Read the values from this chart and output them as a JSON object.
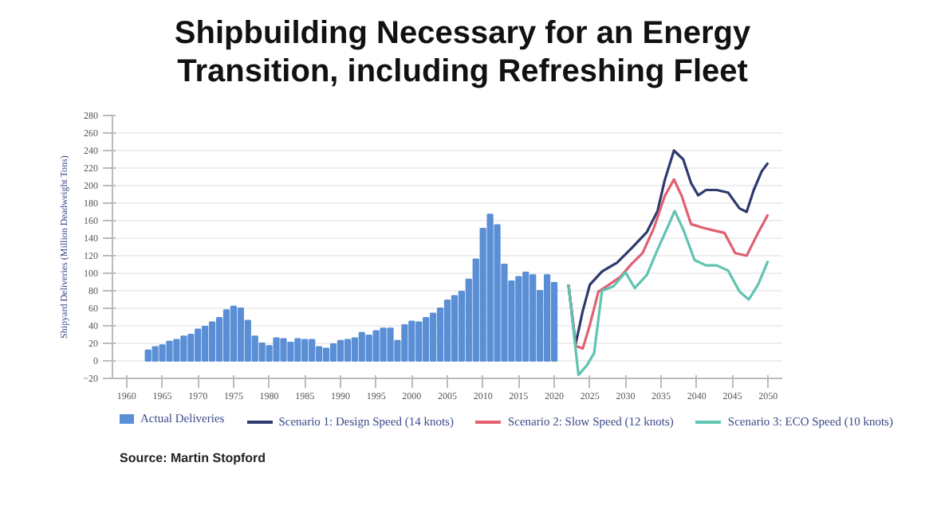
{
  "chart_data": {
    "type": "bar",
    "title": "Shipbuilding Necessary for an Energy Transition, including Refreshing Fleet",
    "ylabel": "Shipyard Deliveries (Million Deadweight Tons)",
    "annotations": [
      "Source: Martin Stopford"
    ],
    "xlim": [
      1958,
      2052
    ],
    "xticks": [
      1960,
      1965,
      1970,
      1975,
      1980,
      1985,
      1990,
      1995,
      2000,
      2005,
      2010,
      2015,
      2020,
      2025,
      2030,
      2035,
      2040,
      2045,
      2050
    ],
    "ylim": [
      -20,
      280
    ],
    "yticks": [
      -20,
      0,
      20,
      40,
      60,
      80,
      100,
      120,
      140,
      160,
      180,
      200,
      220,
      240,
      260,
      280
    ],
    "grid": "y",
    "legend": "bottom",
    "series": [
      {
        "name": "Actual Deliveries",
        "color": "#5a8fd6",
        "x": [
          1963,
          1964,
          1965,
          1966,
          1967,
          1968,
          1969,
          1970,
          1971,
          1972,
          1973,
          1974,
          1975,
          1976,
          1977,
          1978,
          1979,
          1980,
          1981,
          1982,
          1983,
          1984,
          1985,
          1986,
          1987,
          1988,
          1989,
          1990,
          1991,
          1992,
          1993,
          1994,
          1995,
          1996,
          1997,
          1998,
          1999,
          2000,
          2001,
          2002,
          2003,
          2004,
          2005,
          2006,
          2007,
          2008,
          2009,
          2010,
          2011,
          2012,
          2013,
          2014,
          2015,
          2016,
          2017,
          2018,
          2019,
          2020
        ],
        "values": [
          12,
          16,
          18,
          22,
          24,
          28,
          30,
          36,
          39,
          44,
          49,
          58,
          62,
          60,
          46,
          28,
          20,
          17,
          26,
          25,
          21,
          25,
          24,
          24,
          16,
          14,
          19,
          23,
          24,
          26,
          32,
          29,
          34,
          37,
          37,
          23,
          41,
          45,
          44,
          49,
          54,
          60,
          69,
          74,
          79,
          93,
          116,
          151,
          167,
          155,
          110,
          91,
          96,
          101,
          98,
          80,
          98,
          89
        ]
      },
      {
        "name": "Scenario 1: Design Speed (14 knots)",
        "type": "line",
        "color": "#2e3a6e",
        "x": [
          2022,
          2023,
          2024,
          2025,
          2026.7,
          2028.8,
          2030.9,
          2033,
          2034.5,
          2035.5,
          2036.8,
          2038.1,
          2039.2,
          2040.2,
          2041.3,
          2042.8,
          2044.4,
          2046,
          2047,
          2048,
          2049.1,
          2050
        ],
        "values": [
          87,
          19,
          57,
          87,
          102,
          112,
          129,
          147,
          171,
          206,
          240,
          230,
          203,
          189,
          195,
          195,
          192,
          174,
          170,
          195,
          216,
          226
        ]
      },
      {
        "name": "Scenario 2: Slow Speed (12 knots)",
        "type": "line",
        "color": "#e06070",
        "x": [
          2022,
          2023,
          2024,
          2025,
          2026.2,
          2027.7,
          2029.3,
          2030.9,
          2032.4,
          2034,
          2035.5,
          2036.8,
          2037.9,
          2039.2,
          2040.8,
          2042.3,
          2043.9,
          2045.4,
          2047,
          2048.6,
          2050
        ],
        "values": [
          87,
          17,
          14,
          41,
          79,
          87,
          96,
          111,
          123,
          152,
          188,
          207,
          188,
          156,
          152,
          149,
          146,
          123,
          120,
          146,
          167
        ]
      },
      {
        "name": "Scenario 3: ECO Speed (10 knots)",
        "type": "line",
        "color": "#5fc4b0",
        "x": [
          2022,
          2023.4,
          2024.6,
          2025.6,
          2026.7,
          2028.3,
          2030,
          2031.3,
          2033,
          2034.5,
          2036.1,
          2036.9,
          2038.1,
          2039.7,
          2041.3,
          2042.8,
          2044.4,
          2046,
          2047.3,
          2048.6,
          2050
        ],
        "values": [
          87,
          -16,
          -5,
          9,
          80,
          85,
          101,
          83,
          98,
          127,
          156,
          171,
          150,
          115,
          109,
          109,
          103,
          79,
          70,
          87,
          114
        ]
      }
    ]
  }
}
